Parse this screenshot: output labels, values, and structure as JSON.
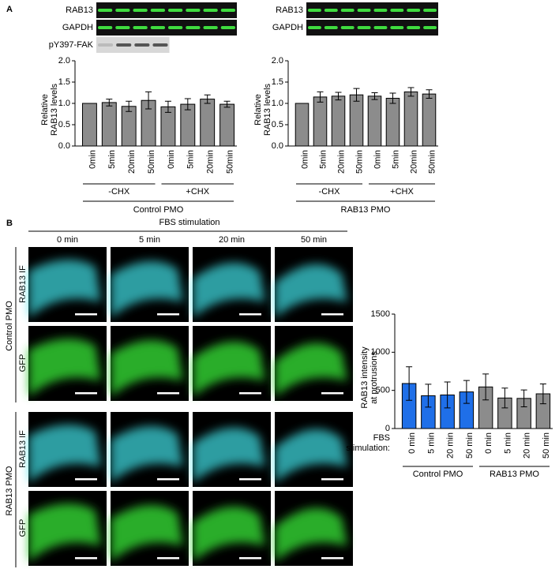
{
  "panel_labels": [
    "A",
    "B"
  ],
  "blots": {
    "left": [
      "RAB13",
      "GAPDH",
      "pY397-FAK"
    ],
    "right": [
      "RAB13",
      "GAPDH"
    ]
  },
  "imaging": {
    "title": "FBS stimulation",
    "columns": [
      "0 min",
      "5 min",
      "20 min",
      "50 min"
    ],
    "groups": [
      {
        "name": "Control PMO",
        "rows": [
          "RAB13 IF",
          "GFP"
        ]
      },
      {
        "name": "RAB13 PMO",
        "rows": [
          "RAB13 IF",
          "GFP"
        ]
      }
    ]
  },
  "chart_data": [
    {
      "type": "bar",
      "y_label": [
        "Relative",
        "RAB13 levels"
      ],
      "categories": [
        "0min",
        "5min",
        "20min",
        "50min",
        "0min",
        "5min",
        "20min",
        "50min"
      ],
      "values": [
        1.0,
        1.02,
        0.93,
        1.07,
        0.92,
        0.98,
        1.1,
        0.98
      ],
      "errors": [
        0.0,
        0.08,
        0.12,
        0.2,
        0.13,
        0.13,
        0.1,
        0.07
      ],
      "color": "#8c8c8c",
      "ylim": [
        0,
        2
      ],
      "yticks": [
        {
          "value": 0,
          "label": "0.0"
        },
        0.5,
        {
          "value": 1,
          "label": "1.0"
        },
        1.5,
        {
          "value": 2,
          "label": "2.0"
        }
      ],
      "group_labels": [
        "-CHX",
        "+CHX"
      ],
      "x_label": "Control PMO"
    },
    {
      "type": "bar",
      "y_label": [
        "Relative",
        "RAB13 levels"
      ],
      "categories": [
        "0min",
        "5min",
        "20min",
        "50min",
        "0min",
        "5min",
        "20min",
        "50min"
      ],
      "values": [
        1.0,
        1.15,
        1.17,
        1.2,
        1.17,
        1.12,
        1.27,
        1.22
      ],
      "errors": [
        0.0,
        0.12,
        0.09,
        0.15,
        0.08,
        0.12,
        0.1,
        0.1
      ],
      "color": "#8c8c8c",
      "ylim": [
        0,
        2
      ],
      "yticks": [
        {
          "value": 0,
          "label": "0.0"
        },
        0.5,
        {
          "value": 1,
          "label": "1.0"
        },
        1.5,
        {
          "value": 2,
          "label": "2.0"
        }
      ],
      "group_labels": [
        "-CHX",
        "+CHX"
      ],
      "x_label": "RAB13 PMO"
    },
    {
      "type": "bar",
      "y_label": [
        "RAB13 intensity",
        "at protrusions"
      ],
      "categories": [
        "0 min",
        "5 min",
        "20 min",
        "50 min",
        "0 min",
        "5 min",
        "20 min",
        "50 min"
      ],
      "values": [
        590,
        430,
        440,
        480,
        545,
        400,
        395,
        455
      ],
      "errors": [
        220,
        150,
        170,
        150,
        170,
        130,
        110,
        130
      ],
      "colors": [
        "#1f6fe8",
        "#1f6fe8",
        "#1f6fe8",
        "#1f6fe8",
        "#8c8c8c",
        "#8c8c8c",
        "#8c8c8c",
        "#8c8c8c"
      ],
      "ylim": [
        0,
        1500
      ],
      "yticks": [
        0,
        500,
        1000,
        1500
      ],
      "group_labels": [
        "Control PMO",
        "RAB13 PMO"
      ],
      "x_prefix": [
        "FBS",
        "stimulation:"
      ]
    }
  ]
}
